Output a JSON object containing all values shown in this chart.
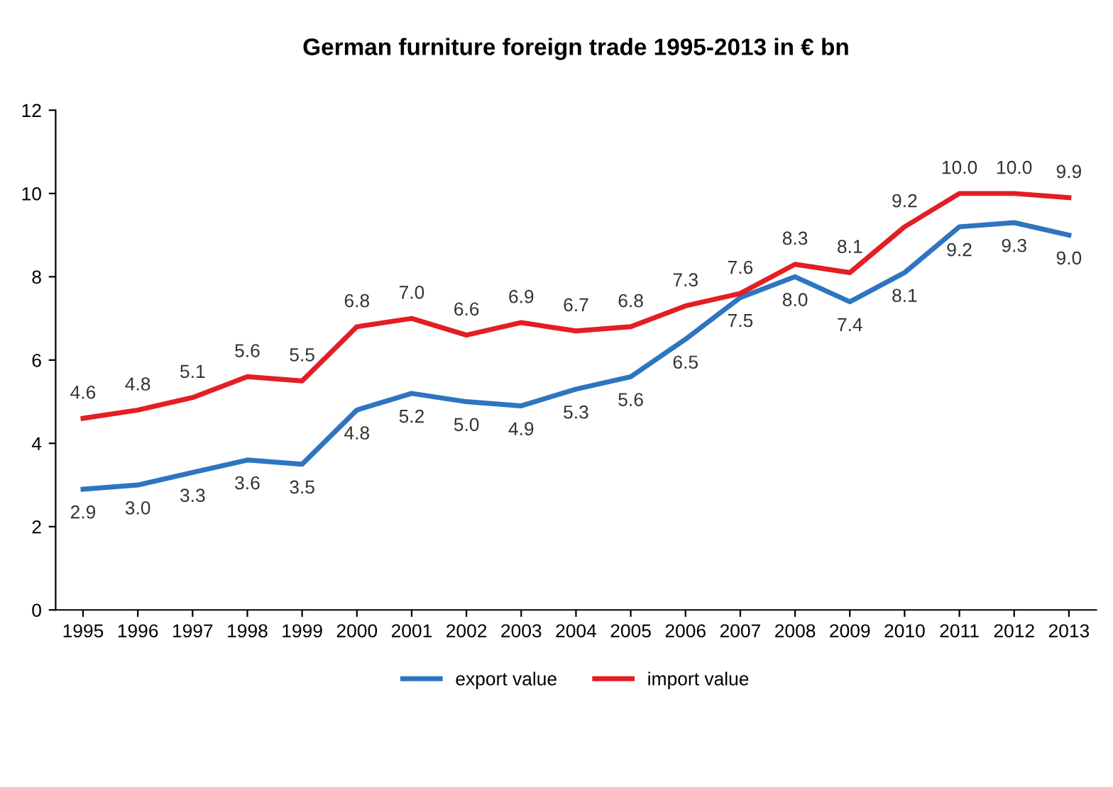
{
  "chart_data": {
    "type": "line",
    "title": "German furniture foreign trade 1995-2013 in € bn",
    "categories": [
      "1995",
      "1996",
      "1997",
      "1998",
      "1999",
      "2000",
      "2001",
      "2002",
      "2003",
      "2004",
      "2005",
      "2006",
      "2007",
      "2008",
      "2009",
      "2010",
      "2011",
      "2012",
      "2013"
    ],
    "series": [
      {
        "name": "export value",
        "color": "#2e75c0",
        "values": [
          2.9,
          3.0,
          3.3,
          3.6,
          3.5,
          4.8,
          5.2,
          5.0,
          4.9,
          5.3,
          5.6,
          6.5,
          7.5,
          8.0,
          7.4,
          8.1,
          9.2,
          9.3,
          9.0
        ],
        "value_labels": [
          "2.9",
          "3.0",
          "3.3",
          "3.6",
          "3.5",
          "4.8",
          "5.2",
          "5.0",
          "4.9",
          "5.3",
          "5.6",
          "6.5",
          "7.5",
          "8.0",
          "7.4",
          "8.1",
          "9.2",
          "9.3",
          "9.0"
        ]
      },
      {
        "name": "import value",
        "color": "#e31e24",
        "values": [
          4.6,
          4.8,
          5.1,
          5.6,
          5.5,
          6.8,
          7.0,
          6.6,
          6.9,
          6.7,
          6.8,
          7.3,
          7.6,
          8.3,
          8.1,
          9.2,
          10.0,
          10.0,
          9.9
        ],
        "value_labels": [
          "4.6",
          "4.8",
          "5.1",
          "5.6",
          "5.5",
          "6.8",
          "7.0",
          "6.6",
          "6.9",
          "6.7",
          "6.8",
          "7.3",
          "7.6",
          "8.3",
          "8.1",
          "9.2",
          "10.0",
          "10.0",
          "9.9"
        ]
      }
    ],
    "ylim": [
      0,
      12
    ],
    "yticks": [
      0,
      2,
      4,
      6,
      8,
      10,
      12
    ],
    "grid": false,
    "legend": "bottom",
    "marker": "none",
    "line_style": "solid"
  }
}
